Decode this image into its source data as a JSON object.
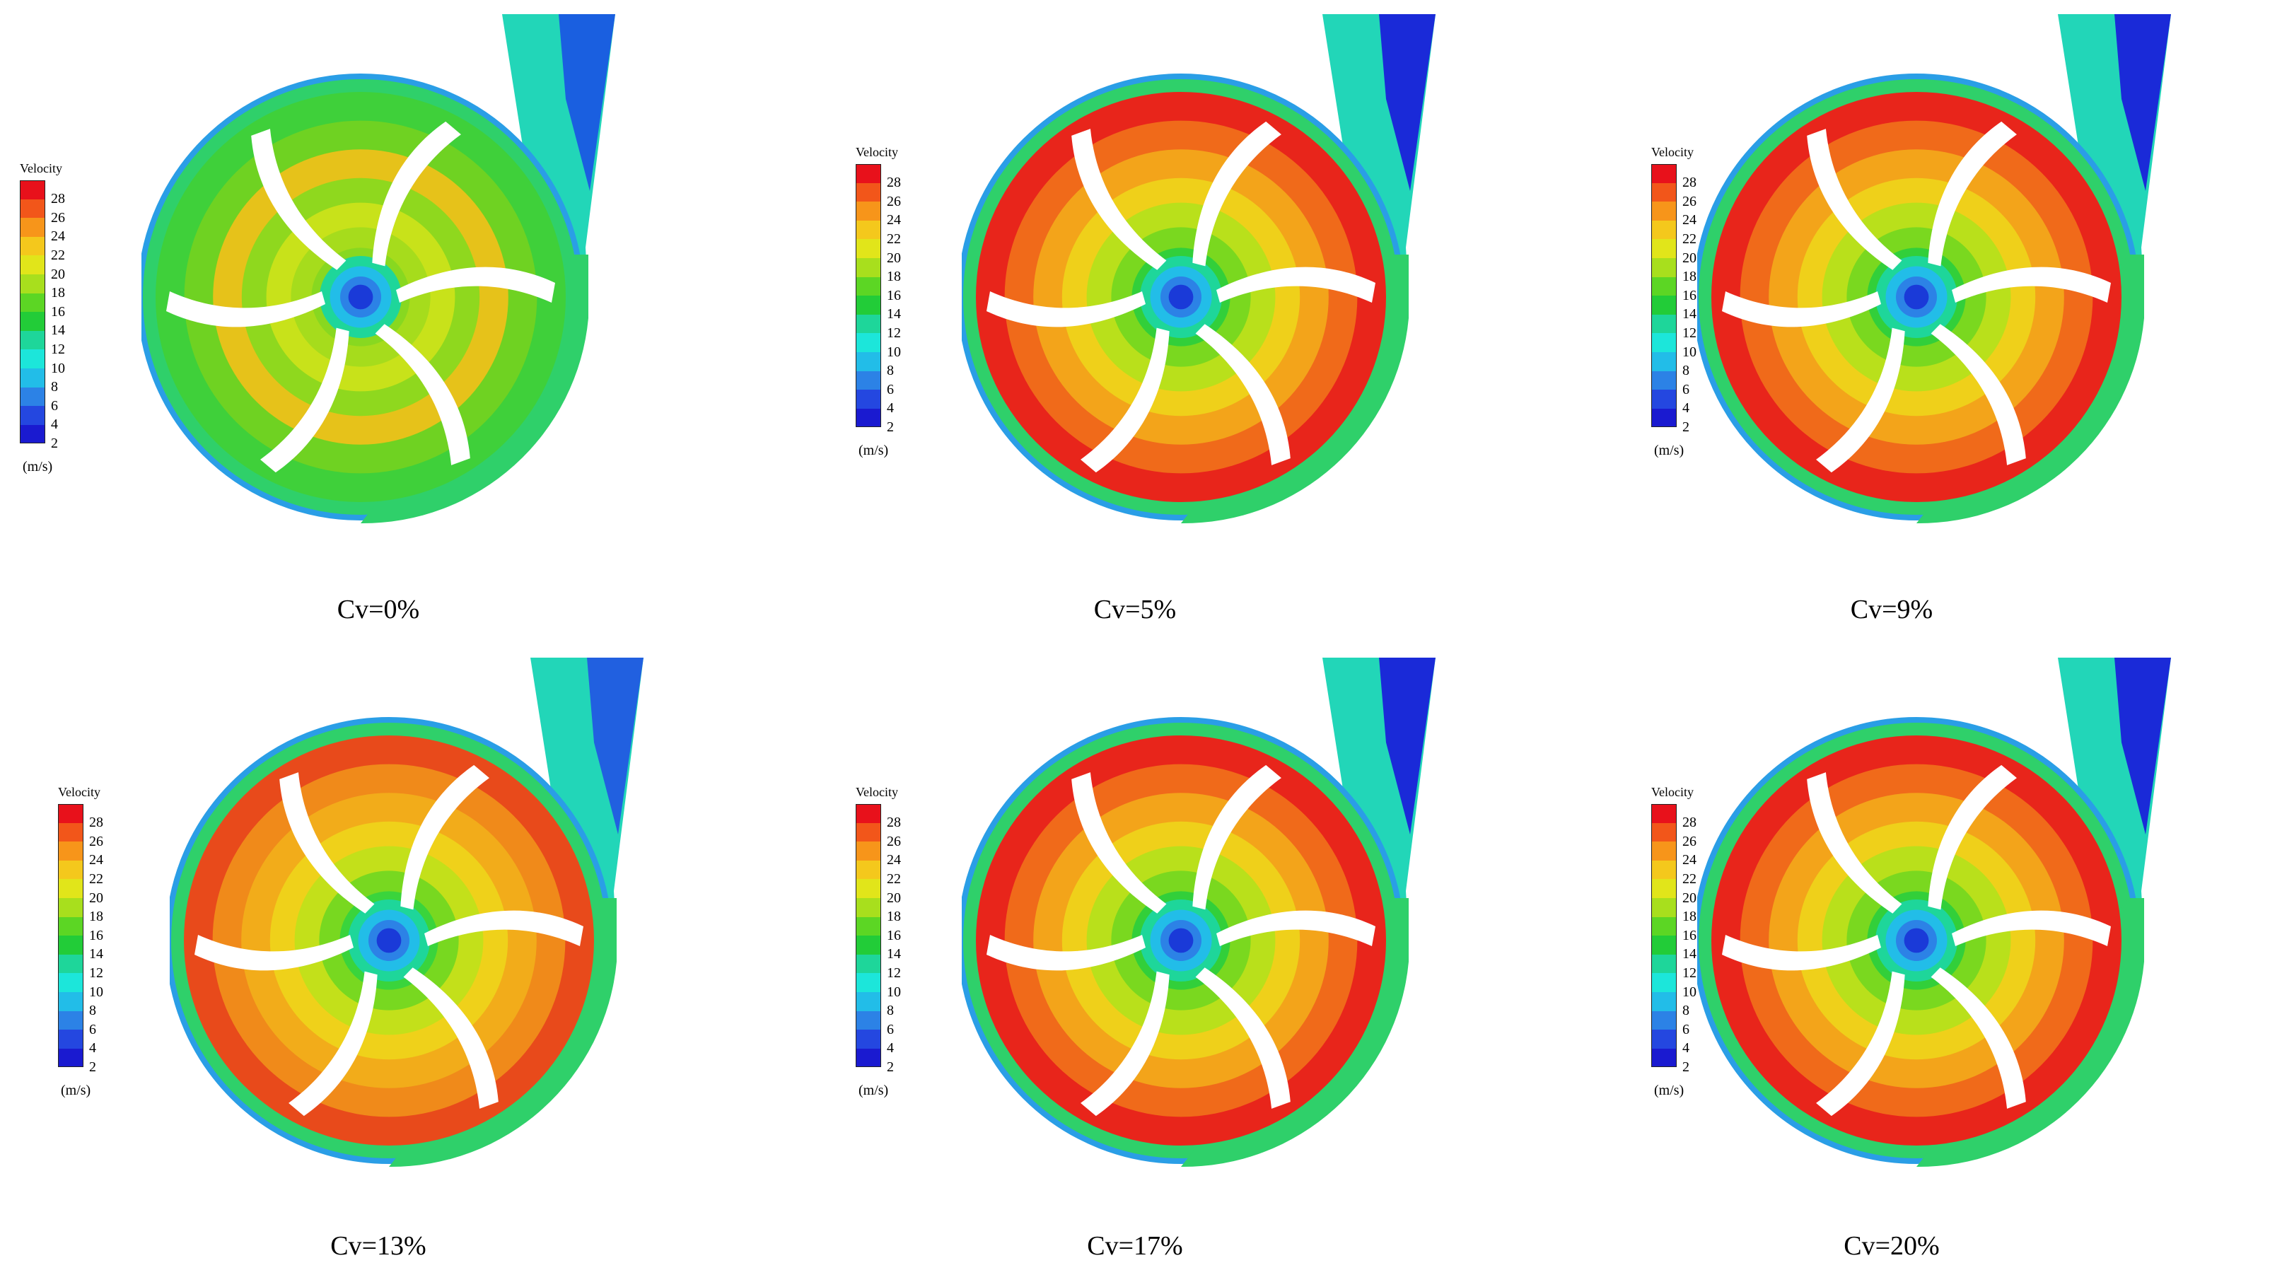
{
  "legend": {
    "title": "Velocity",
    "unit": "(m/s)",
    "ticks": [
      "28",
      "26",
      "24",
      "22",
      "20",
      "18",
      "16",
      "14",
      "12",
      "10",
      "8",
      "6",
      "4",
      "2"
    ],
    "colors": [
      "#e8111b",
      "#f2561a",
      "#f7951a",
      "#f4c81c",
      "#e1e51a",
      "#a8df1d",
      "#5cd624",
      "#22cc38",
      "#1ed69a",
      "#1ce6da",
      "#22bde8",
      "#2c82e6",
      "#2447e0",
      "#1a1ad0"
    ]
  },
  "panels": [
    {
      "caption": "Cv=0%",
      "palette": "flat",
      "outlet_color": "#1a5fe0"
    },
    {
      "caption": "Cv=5%",
      "palette": "rich",
      "outlet_color": "#1a2ad8"
    },
    {
      "caption": "Cv=9%",
      "palette": "rich",
      "outlet_color": "#1a2ad8"
    },
    {
      "caption": "Cv=13%",
      "palette": "wide",
      "outlet_color": "#2160e0"
    },
    {
      "caption": "Cv=17%",
      "palette": "rich",
      "outlet_color": "#1a2ad8"
    },
    {
      "caption": "Cv=20%",
      "palette": "rich",
      "outlet_color": "#1a2ad8"
    }
  ]
}
